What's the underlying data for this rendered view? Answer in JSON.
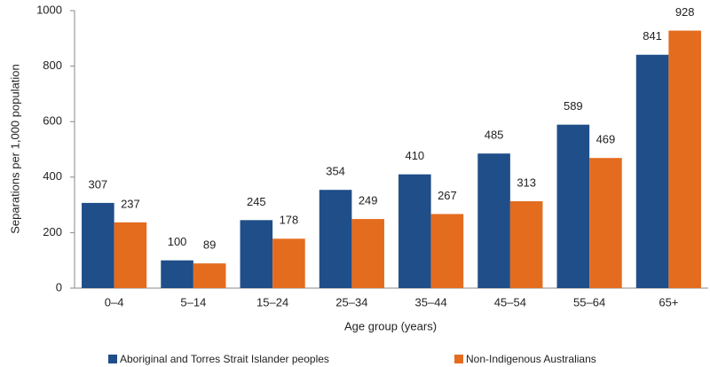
{
  "chart_data": {
    "type": "bar",
    "x_label": "Age group (years)",
    "y_label": "Separations per 1,000 population",
    "categories": [
      "0–4",
      "5–14",
      "15–24",
      "25–34",
      "35–44",
      "45–54",
      "55–64",
      "65+"
    ],
    "series": [
      {
        "name": "Aboriginal and Torres Strait Islander peoples",
        "color": "#1f4e89",
        "values": [
          307,
          100,
          245,
          354,
          410,
          485,
          589,
          841
        ]
      },
      {
        "name": "Non-Indigenous Australians",
        "color": "#e46c1f",
        "values": [
          237,
          89,
          178,
          249,
          267,
          313,
          469,
          928
        ]
      }
    ],
    "ylim": [
      0,
      1000
    ],
    "yticks": [
      0,
      200,
      400,
      600,
      800,
      1000
    ],
    "grid": false,
    "legend": "bottom"
  }
}
